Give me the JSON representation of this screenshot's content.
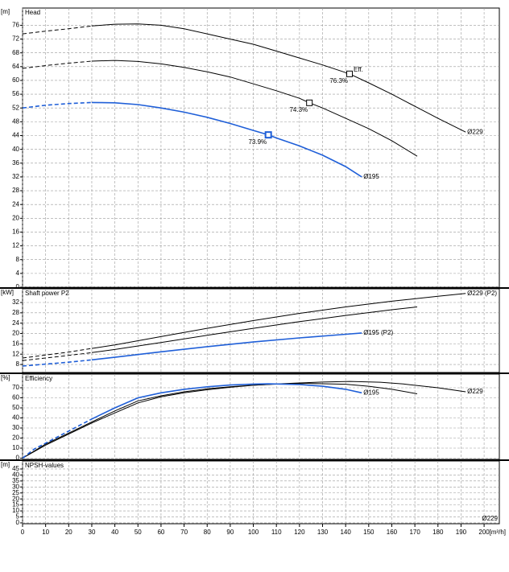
{
  "chart_data": [
    {
      "type": "line",
      "unit": "[m]",
      "title": "Head",
      "ylim": [
        0,
        81
      ],
      "yticks": [
        0,
        4,
        8,
        12,
        16,
        20,
        24,
        28,
        32,
        36,
        40,
        44,
        48,
        52,
        56,
        60,
        64,
        68,
        72,
        76
      ],
      "grid": true,
      "annotation": "Eff.",
      "series": [
        {
          "name": "Ø229",
          "color": "#000000",
          "dashed_to": 30,
          "x": [
            0,
            10,
            20,
            30,
            40,
            50,
            60,
            70,
            80,
            90,
            100,
            110,
            120,
            130,
            141.7,
            150,
            160,
            170,
            180,
            192
          ],
          "values": [
            73.5,
            74.3,
            75,
            75.8,
            76.3,
            76.4,
            76,
            75,
            73.5,
            72,
            70.5,
            68.5,
            66.5,
            64.5,
            61.9,
            59.3,
            56,
            52.5,
            49,
            45
          ],
          "point": {
            "x": 141.7,
            "y": 61.9,
            "label": "76.3%"
          }
        },
        {
          "color": "#000000",
          "dashed_to": 30,
          "x": [
            0,
            10,
            20,
            30,
            40,
            50,
            60,
            70,
            80,
            90,
            100,
            110,
            120,
            124.3,
            130,
            140,
            150,
            160,
            171
          ],
          "values": [
            63.5,
            64.3,
            65,
            65.6,
            65.8,
            65.5,
            64.8,
            63.8,
            62.5,
            61,
            59,
            57,
            54.8,
            53.5,
            52,
            49,
            46,
            42.5,
            38
          ],
          "point": {
            "x": 124.3,
            "y": 53.5,
            "label": "74.3%"
          }
        },
        {
          "name": "Ø195",
          "color": "#1f5fd8",
          "dashed_to": 30,
          "x": [
            0,
            10,
            20,
            30,
            40,
            50,
            60,
            70,
            80,
            90,
            100,
            106.5,
            110,
            120,
            130,
            140,
            147
          ],
          "values": [
            52,
            52.8,
            53.3,
            53.6,
            53.5,
            53,
            52,
            50.8,
            49.3,
            47.5,
            45.5,
            44.2,
            43.3,
            41,
            38.3,
            35,
            32
          ],
          "point": {
            "x": 106.5,
            "y": 44.2,
            "label": "73.9%"
          }
        }
      ]
    },
    {
      "type": "line",
      "unit": "[kW]",
      "title": "Shaft power P2",
      "ylim": [
        4.9,
        37.3
      ],
      "yticks": [
        8,
        12,
        16,
        20,
        24,
        28,
        32
      ],
      "grid": true,
      "series": [
        {
          "name": "Ø229 (P2)",
          "color": "#000000",
          "dashed_to": 30,
          "x": [
            0,
            20,
            30,
            40,
            60,
            80,
            100,
            120,
            140,
            160,
            180,
            192
          ],
          "values": [
            10.5,
            12.8,
            14.2,
            15.6,
            18.8,
            22,
            25,
            27.8,
            30.3,
            32.5,
            34.4,
            35.5
          ]
        },
        {
          "color": "#000000",
          "dashed_to": 30,
          "x": [
            0,
            20,
            30,
            40,
            60,
            80,
            100,
            120,
            140,
            160,
            171
          ],
          "values": [
            9.5,
            11.5,
            12.6,
            13.8,
            16.5,
            19.3,
            22,
            24.6,
            27,
            29.2,
            30.3
          ]
        },
        {
          "name": "Ø195 (P2)",
          "color": "#1f5fd8",
          "dashed_to": 30,
          "x": [
            0,
            20,
            30,
            40,
            60,
            80,
            100,
            120,
            140,
            147
          ],
          "values": [
            7.4,
            8.9,
            9.8,
            10.8,
            12.9,
            14.9,
            16.7,
            18.3,
            19.7,
            20.2
          ]
        }
      ]
    },
    {
      "type": "line",
      "unit": "[%]",
      "title": "Efficiency",
      "ylim": [
        -1.2,
        83.6
      ],
      "yticks": [
        0,
        10,
        20,
        30,
        40,
        50,
        60,
        70
      ],
      "grid": true,
      "series": [
        {
          "name": "Ø229",
          "color": "#000000",
          "dashed_to": 0,
          "x": [
            0,
            10,
            20,
            30,
            40,
            50,
            60,
            70,
            80,
            90,
            100,
            110,
            120,
            130,
            142,
            155,
            165,
            180,
            192
          ],
          "values": [
            0,
            13,
            24,
            35,
            45,
            55,
            61,
            65,
            68,
            70.5,
            72.5,
            73.8,
            74.8,
            75.7,
            76.3,
            75.5,
            73.8,
            70,
            66
          ]
        },
        {
          "color": "#000000",
          "dashed_to": 0,
          "x": [
            0,
            10,
            20,
            30,
            40,
            50,
            60,
            70,
            80,
            90,
            100,
            110,
            124,
            140,
            150,
            160,
            171
          ],
          "values": [
            0,
            14,
            25,
            36,
            47,
            57,
            62,
            66,
            69,
            71,
            72.6,
            73.6,
            74.3,
            73.5,
            71.5,
            68.5,
            64
          ]
        },
        {
          "name": "Ø195",
          "color": "#1f5fd8",
          "dashed_to": 30,
          "x": [
            0,
            5,
            10,
            20,
            30,
            40,
            50,
            60,
            70,
            80,
            90,
            100,
            106.5,
            120,
            130,
            140,
            147
          ],
          "values": [
            0,
            9,
            15,
            27,
            39,
            50,
            60,
            65,
            68.5,
            71,
            72.7,
            73.7,
            73.9,
            73.2,
            71.5,
            68.5,
            65
          ]
        }
      ]
    },
    {
      "type": "line",
      "unit": "[m]",
      "title": "NPSH-values",
      "ylim": [
        -0.7,
        51.7
      ],
      "yticks": [
        0,
        5,
        10,
        15,
        20,
        25,
        30,
        35,
        40,
        45
      ],
      "grid": true,
      "annotation": "Ø229",
      "annotation_color": "#1f5fd8",
      "series": [],
      "xlim": [
        0,
        206.6
      ],
      "xunit": "[m³/h]",
      "xticks": [
        0,
        10,
        20,
        30,
        40,
        50,
        60,
        70,
        80,
        90,
        100,
        110,
        120,
        130,
        140,
        150,
        160,
        170,
        180,
        190,
        200
      ]
    }
  ]
}
